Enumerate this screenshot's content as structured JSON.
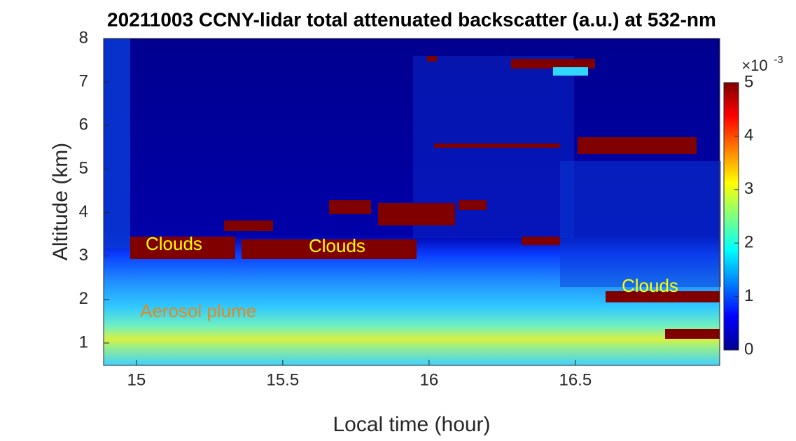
{
  "chart_data": {
    "type": "heatmap",
    "title": "20211003 CCNY-lidar total attenuated backscatter (a.u.) at 532-nm",
    "xlabel": "Local time (hour)",
    "ylabel": "Altitude (km)",
    "xlim": [
      14.888,
      16.993
    ],
    "xticks": [
      15,
      15.5,
      16,
      16.5
    ],
    "ylim": [
      0.485,
      8
    ],
    "yticks": [
      1,
      2,
      3,
      4,
      5,
      6,
      7,
      8
    ],
    "colorbar": {
      "clim": [
        0,
        5
      ],
      "ticks": [
        0,
        1,
        2,
        3,
        4,
        5
      ],
      "scale_label": "×10",
      "exponent": "-3",
      "colormap": "jet"
    },
    "annotations": [
      {
        "text": "Clouds",
        "color": "#ffff00"
      },
      {
        "text": "Clouds",
        "color": "#ffff00"
      },
      {
        "text": "Clouds",
        "color": "#ffff00"
      },
      {
        "text": "Aerosol plume",
        "color": "#e08a1e"
      }
    ]
  }
}
